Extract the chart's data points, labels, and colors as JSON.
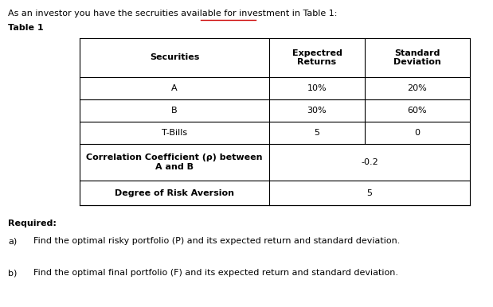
{
  "intro_text": "As an investor you have the secruities available for investment in Table 1:",
  "table_label": "Table 1",
  "header_col1": "Securities",
  "header_col2": "Expectred\nReturns",
  "header_col3": "Standard\nDeviation",
  "rows": [
    {
      "col1": "A",
      "col2": "10%",
      "col3": "20%",
      "bold1": false
    },
    {
      "col1": "B",
      "col2": "30%",
      "col3": "60%",
      "bold1": false
    },
    {
      "col1": "T-Bills",
      "col2": "5",
      "col3": "0",
      "bold1": false
    },
    {
      "col1": "Correlation Coefficient (ρ) between\nA and B",
      "col2": "-0.2",
      "col3": "",
      "span": true,
      "bold1": true
    },
    {
      "col1": "Degree of Risk Aversion",
      "col2": "5",
      "col3": "",
      "span": true,
      "bold1": true
    }
  ],
  "required_label": "Required:",
  "part_a_label": "a)",
  "part_a_text": "Find the optimal risky portfolio (P) and its expected return and standard deviation.",
  "part_b_label": "b)",
  "part_b_text": "Find the optimal final portfolio (F) and its expected return and standard deviation.",
  "bg_color": "#ffffff",
  "text_color": "#000000",
  "table_line_color": "#000000",
  "underline_color": "#cc0000",
  "font_size": 8.0
}
